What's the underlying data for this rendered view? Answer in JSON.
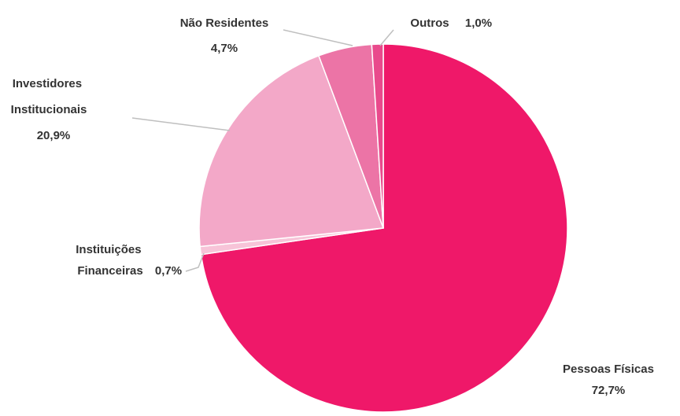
{
  "chart_data": {
    "type": "pie",
    "categories": [
      "Pessoas Físicas",
      "Instituições Financeiras",
      "Investidores Institucionais",
      "Não Residentes",
      "Outros"
    ],
    "values": [
      72.7,
      0.7,
      20.9,
      4.7,
      1.0
    ],
    "value_labels": [
      "72,7%",
      "0,7%",
      "20,9%",
      "4,7%",
      "1,0%"
    ],
    "colors": [
      "#ef1869",
      "#f7c4d8",
      "#f3a8c8",
      "#ec74a6",
      "#e94a8c"
    ]
  }
}
